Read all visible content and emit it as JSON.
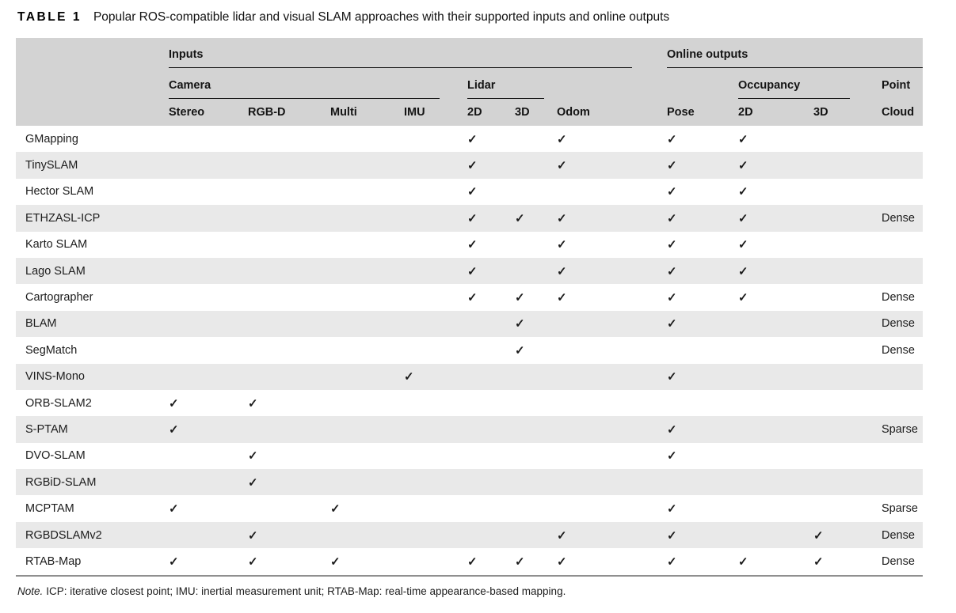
{
  "title": {
    "label": "TABLE 1",
    "text": "Popular ROS-compatible lidar and visual SLAM approaches with their supported inputs and online outputs"
  },
  "table": {
    "check_glyph": "✓",
    "header": {
      "group_inputs": "Inputs",
      "group_online_outputs": "Online outputs",
      "sub_camera": "Camera",
      "sub_lidar": "Lidar",
      "sub_occupancy": "Occupancy",
      "sub_point": "Point",
      "columns": [
        "Stereo",
        "RGB-D",
        "Multi",
        "IMU",
        "2D",
        "3D",
        "Odom",
        "Pose",
        "2D",
        "3D",
        "Cloud"
      ]
    },
    "rows": [
      {
        "name": "GMapping",
        "cells": [
          "",
          "",
          "",
          "",
          "✓",
          "",
          "✓",
          "✓",
          "✓",
          "",
          ""
        ]
      },
      {
        "name": "TinySLAM",
        "cells": [
          "",
          "",
          "",
          "",
          "✓",
          "",
          "✓",
          "✓",
          "✓",
          "",
          ""
        ]
      },
      {
        "name": "Hector SLAM",
        "cells": [
          "",
          "",
          "",
          "",
          "✓",
          "",
          "",
          "✓",
          "✓",
          "",
          ""
        ]
      },
      {
        "name": "ETHZASL-ICP",
        "cells": [
          "",
          "",
          "",
          "",
          "✓",
          "✓",
          "✓",
          "✓",
          "✓",
          "",
          "Dense"
        ]
      },
      {
        "name": "Karto SLAM",
        "cells": [
          "",
          "",
          "",
          "",
          "✓",
          "",
          "✓",
          "✓",
          "✓",
          "",
          ""
        ]
      },
      {
        "name": "Lago SLAM",
        "cells": [
          "",
          "",
          "",
          "",
          "✓",
          "",
          "✓",
          "✓",
          "✓",
          "",
          ""
        ]
      },
      {
        "name": "Cartographer",
        "cells": [
          "",
          "",
          "",
          "",
          "✓",
          "✓",
          "✓",
          "✓",
          "✓",
          "",
          "Dense"
        ]
      },
      {
        "name": "BLAM",
        "cells": [
          "",
          "",
          "",
          "",
          "",
          "✓",
          "",
          "✓",
          "",
          "",
          "Dense"
        ]
      },
      {
        "name": "SegMatch",
        "cells": [
          "",
          "",
          "",
          "",
          "",
          "✓",
          "",
          "",
          "",
          "",
          "Dense"
        ]
      },
      {
        "name": "VINS-Mono",
        "cells": [
          "",
          "",
          "",
          "✓",
          "",
          "",
          "",
          "✓",
          "",
          "",
          ""
        ]
      },
      {
        "name": "ORB-SLAM2",
        "cells": [
          "✓",
          "✓",
          "",
          "",
          "",
          "",
          "",
          "",
          "",
          "",
          ""
        ]
      },
      {
        "name": "S-PTAM",
        "cells": [
          "✓",
          "",
          "",
          "",
          "",
          "",
          "",
          "✓",
          "",
          "",
          "Sparse"
        ]
      },
      {
        "name": "DVO-SLAM",
        "cells": [
          "",
          "✓",
          "",
          "",
          "",
          "",
          "",
          "✓",
          "",
          "",
          ""
        ]
      },
      {
        "name": "RGBiD-SLAM",
        "cells": [
          "",
          "✓",
          "",
          "",
          "",
          "",
          "",
          "",
          "",
          "",
          ""
        ]
      },
      {
        "name": "MCPTAM",
        "cells": [
          "✓",
          "",
          "✓",
          "",
          "",
          "",
          "",
          "✓",
          "",
          "",
          "Sparse"
        ]
      },
      {
        "name": "RGBDSLAMv2",
        "cells": [
          "",
          "✓",
          "",
          "",
          "",
          "",
          "✓",
          "✓",
          "",
          "✓",
          "Dense"
        ]
      },
      {
        "name": "RTAB-Map",
        "cells": [
          "✓",
          "✓",
          "✓",
          "",
          "✓",
          "✓",
          "✓",
          "✓",
          "✓",
          "✓",
          "Dense"
        ]
      }
    ]
  },
  "footnote": {
    "label": "Note.",
    "text": "ICP: iterative closest point; IMU: inertial measurement unit; RTAB-Map: real-time appearance-based mapping."
  },
  "colors": {
    "header_bg": "#d3d3d3",
    "stripe_bg": "#e9e9e9",
    "rule": "#161616",
    "bottom_rule": "#8f8f8f",
    "text": "#1c1c1c"
  }
}
